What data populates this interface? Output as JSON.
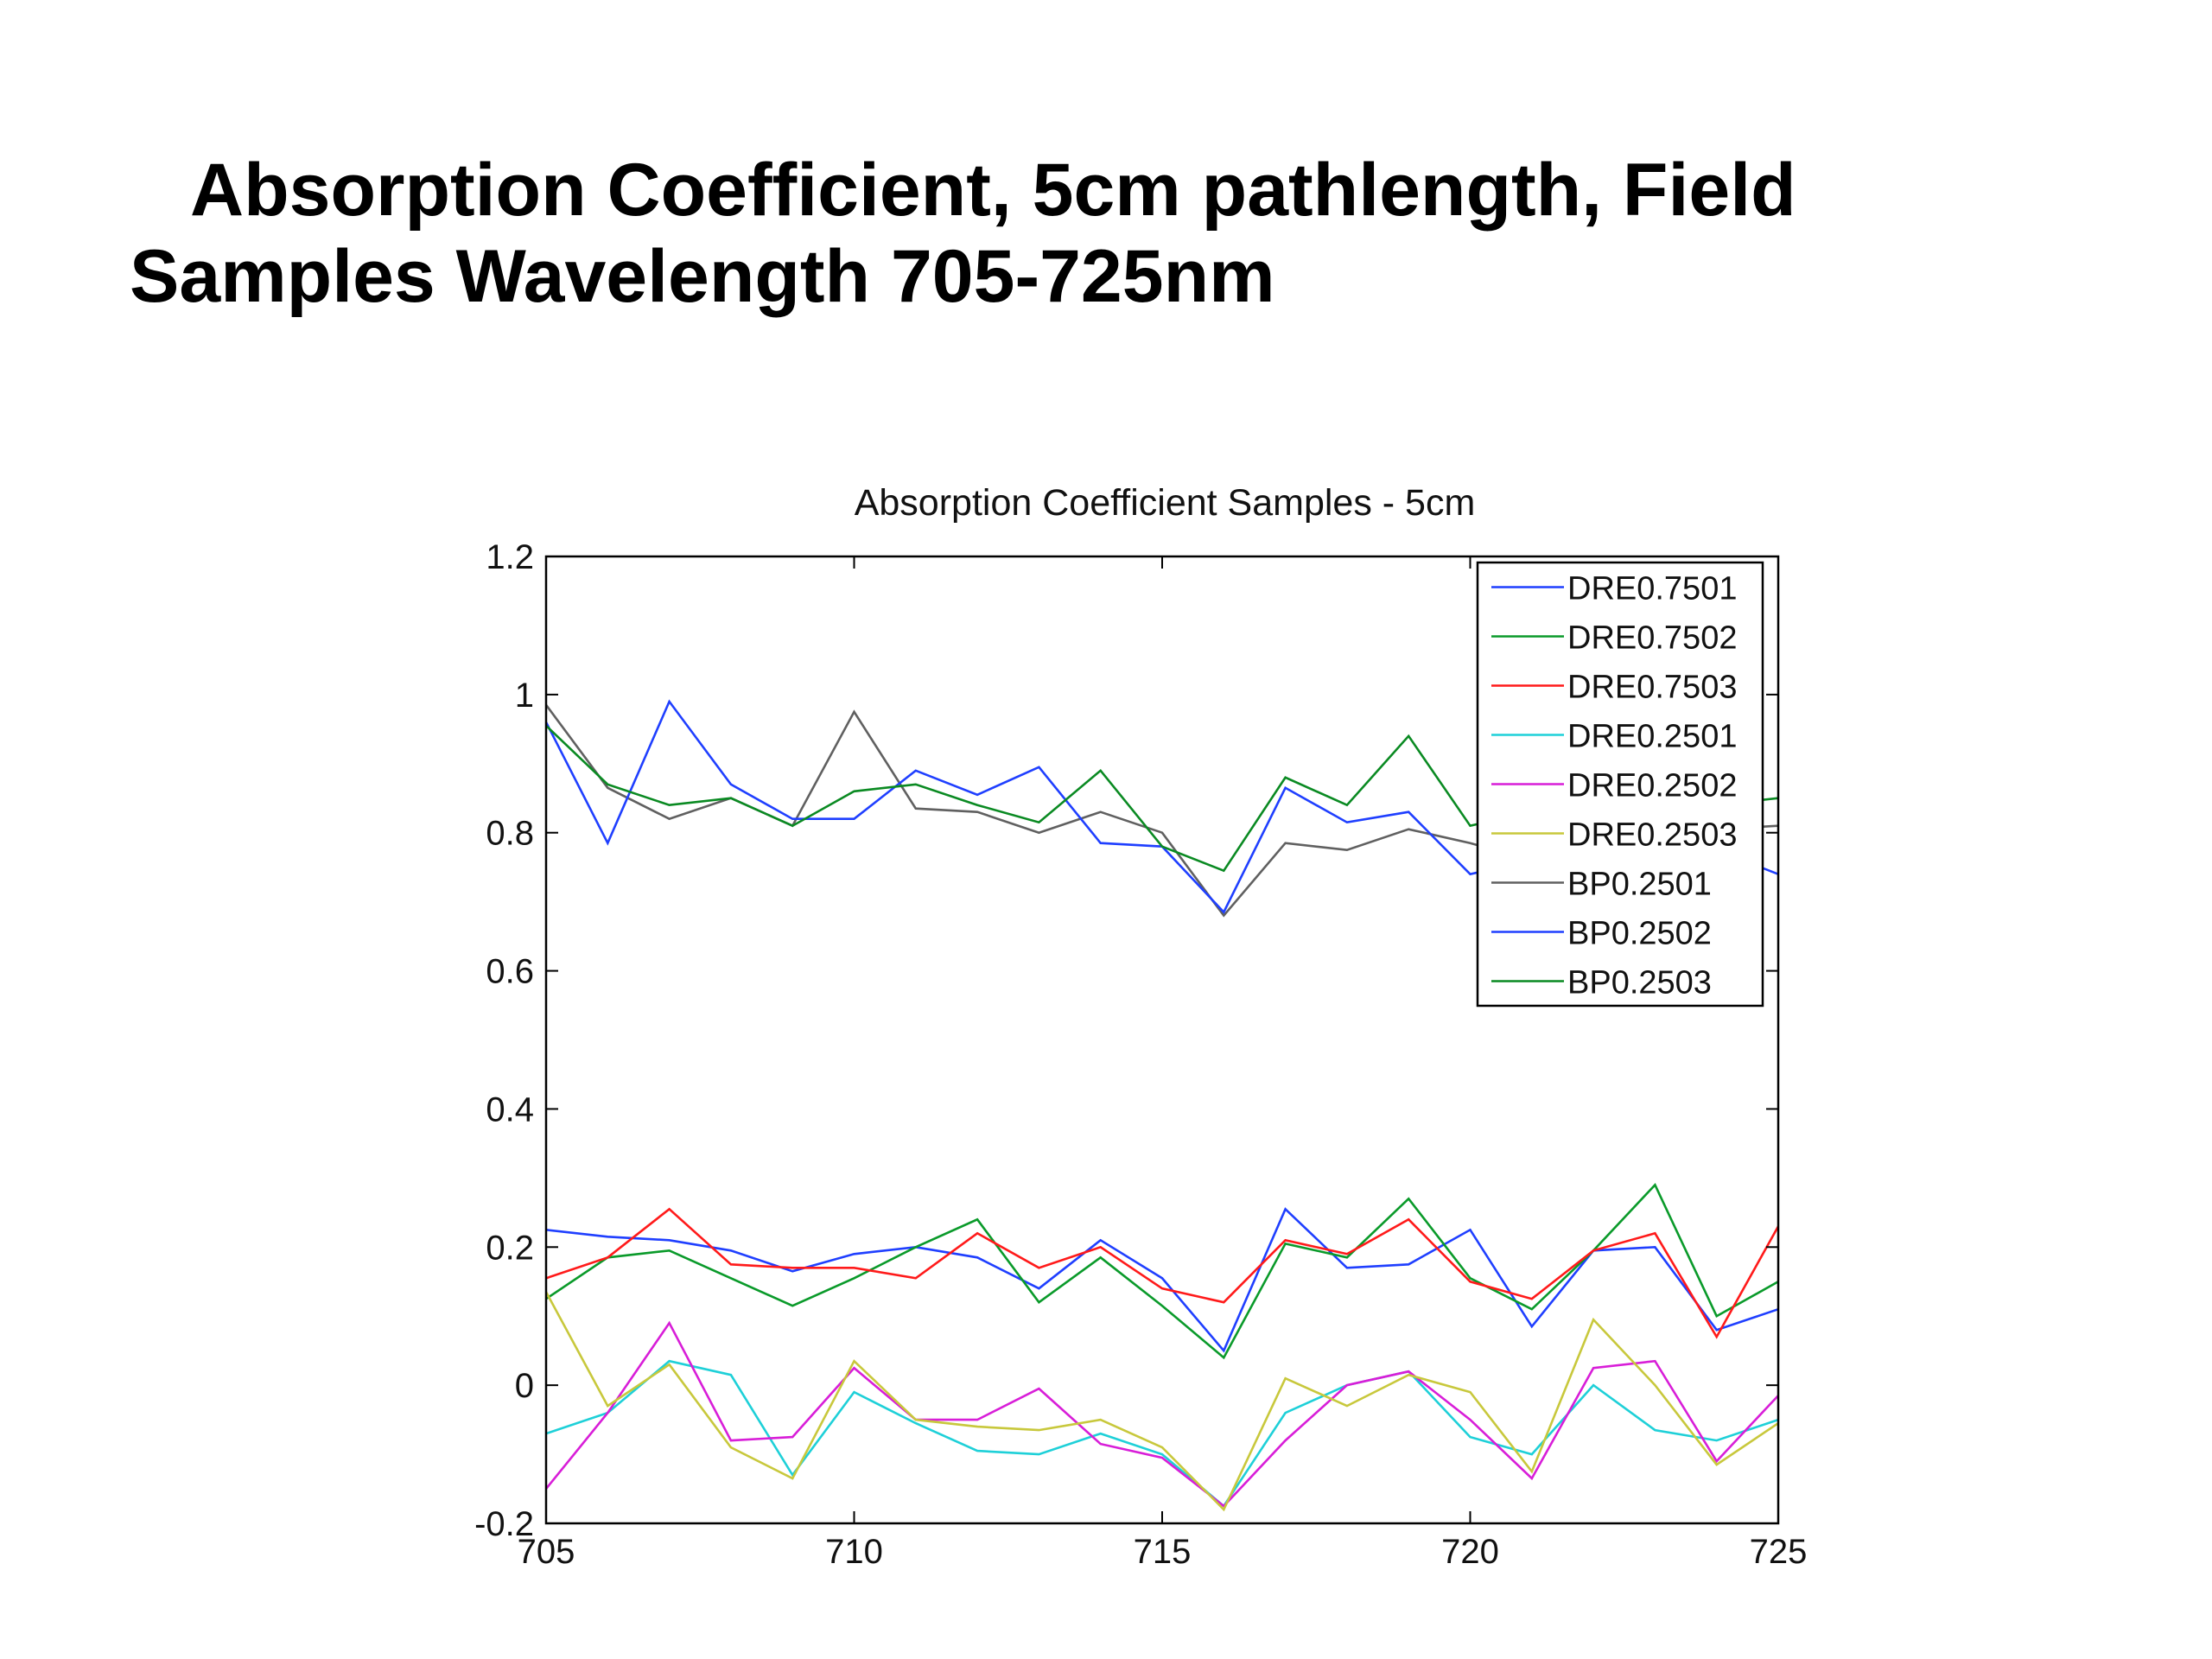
{
  "slide": {
    "title_line1": "Absorption Coefficient, 5cm pathlength, Field",
    "title_line2": "Samples Wavelength 705-725nm"
  },
  "chart_data": {
    "type": "line",
    "title": "Absorption Coefficient Samples - 5cm",
    "xlabel": "",
    "ylabel": "",
    "xlim": [
      705,
      725
    ],
    "ylim": [
      -0.2,
      1.2
    ],
    "xticks": [
      705,
      710,
      715,
      720,
      725
    ],
    "yticks": [
      -0.2,
      0,
      0.2,
      0.4,
      0.6,
      0.8,
      1,
      1.2
    ],
    "xtick_labels": [
      "705",
      "710",
      "715",
      "720",
      "725"
    ],
    "ytick_labels": [
      "-0.2",
      "0",
      "0.2",
      "0.4",
      "0.6",
      "0.8",
      "1",
      "1.2"
    ],
    "grid": false,
    "legend_position": "top-right",
    "x": [
      705,
      706,
      707,
      708,
      709,
      710,
      711,
      712,
      713,
      714,
      715,
      716,
      717,
      718,
      719,
      720,
      721,
      722,
      723,
      724,
      725
    ],
    "series": [
      {
        "name": "DRE0.7501",
        "color": "#1f3fff",
        "values": [
          0.225,
          0.215,
          0.21,
          0.195,
          0.165,
          0.19,
          0.2,
          0.185,
          0.14,
          0.21,
          0.155,
          0.05,
          0.255,
          0.17,
          0.175,
          0.225,
          0.085,
          0.195,
          0.2,
          0.08,
          0.11
        ]
      },
      {
        "name": "DRE0.7502",
        "color": "#0a9a2a",
        "values": [
          0.125,
          0.185,
          0.195,
          0.155,
          0.115,
          0.155,
          0.2,
          0.24,
          0.12,
          0.185,
          0.115,
          0.04,
          0.205,
          0.185,
          0.27,
          0.155,
          0.11,
          0.195,
          0.29,
          0.1,
          0.15
        ]
      },
      {
        "name": "DRE0.7503",
        "color": "#ff1a1a",
        "values": [
          0.155,
          0.185,
          0.255,
          0.175,
          0.17,
          0.17,
          0.155,
          0.22,
          0.17,
          0.2,
          0.14,
          0.12,
          0.21,
          0.19,
          0.24,
          0.15,
          0.125,
          0.195,
          0.22,
          0.07,
          0.23
        ]
      },
      {
        "name": "DRE0.2501",
        "color": "#1ed0d8",
        "values": [
          -0.07,
          -0.04,
          0.035,
          0.015,
          -0.13,
          -0.01,
          -0.055,
          -0.095,
          -0.1,
          -0.07,
          -0.1,
          -0.175,
          -0.04,
          0.0,
          0.02,
          -0.075,
          -0.1,
          0.0,
          -0.065,
          -0.08,
          -0.05
        ]
      },
      {
        "name": "DRE0.2502",
        "color": "#d81ed8",
        "values": [
          -0.15,
          -0.04,
          0.09,
          -0.08,
          -0.075,
          0.025,
          -0.05,
          -0.05,
          -0.005,
          -0.085,
          -0.105,
          -0.175,
          -0.08,
          0.0,
          0.02,
          -0.05,
          -0.135,
          0.025,
          0.035,
          -0.11,
          -0.015
        ]
      },
      {
        "name": "DRE0.2503",
        "color": "#c8c83c",
        "values": [
          0.135,
          -0.03,
          0.03,
          -0.09,
          -0.135,
          0.035,
          -0.05,
          -0.06,
          -0.065,
          -0.05,
          -0.09,
          -0.18,
          0.01,
          -0.03,
          0.015,
          -0.01,
          -0.125,
          0.095,
          0.0,
          -0.115,
          -0.055
        ]
      },
      {
        "name": "BP0.2501",
        "color": "#606060",
        "values": [
          0.985,
          0.865,
          0.82,
          0.85,
          0.81,
          0.975,
          0.835,
          0.83,
          0.8,
          0.83,
          0.8,
          0.68,
          0.785,
          0.775,
          0.805,
          0.785,
          0.76,
          0.79,
          0.8,
          0.805,
          0.81
        ]
      },
      {
        "name": "BP0.2502",
        "color": "#1f3fff",
        "values": [
          0.96,
          0.785,
          0.99,
          0.87,
          0.82,
          0.82,
          0.89,
          0.855,
          0.895,
          0.785,
          0.78,
          0.685,
          0.865,
          0.815,
          0.83,
          0.74,
          0.76,
          0.77,
          0.78,
          0.775,
          0.74
        ]
      },
      {
        "name": "BP0.2503",
        "color": "#0a8a22",
        "values": [
          0.955,
          0.87,
          0.84,
          0.85,
          0.81,
          0.86,
          0.87,
          0.84,
          0.815,
          0.89,
          0.78,
          0.745,
          0.88,
          0.84,
          0.94,
          0.81,
          0.83,
          0.86,
          0.85,
          0.84,
          0.85
        ]
      }
    ]
  }
}
